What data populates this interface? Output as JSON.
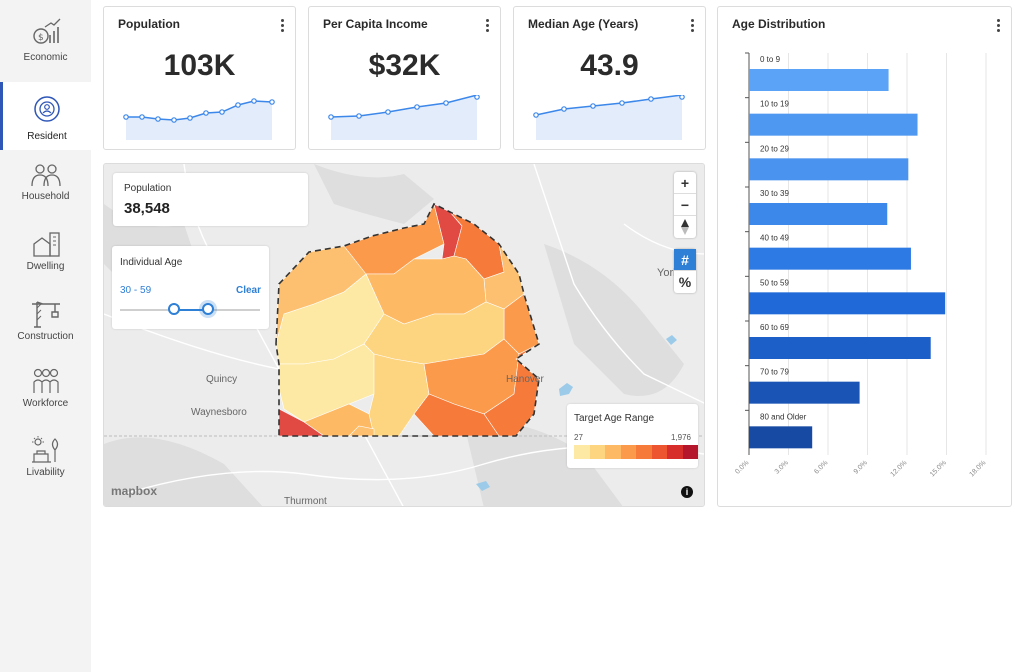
{
  "nav": [
    {
      "label": "Economic",
      "icon": "economic-icon"
    },
    {
      "label": "Resident",
      "icon": "resident-icon",
      "active": true
    },
    {
      "label": "Household",
      "icon": "household-icon"
    },
    {
      "label": "Dwelling",
      "icon": "dwelling-icon"
    },
    {
      "label": "Construction",
      "icon": "construction-icon"
    },
    {
      "label": "Workforce",
      "icon": "workforce-icon"
    },
    {
      "label": "Livability",
      "icon": "livability-icon"
    }
  ],
  "kpis": [
    {
      "title": "Population",
      "value": "103K"
    },
    {
      "title": "Per Capita Income",
      "value": "$32K"
    },
    {
      "title": "Median Age (Years)",
      "value": "43.9"
    }
  ],
  "map": {
    "population_label": "Population",
    "population_value": "38,548",
    "filter_title": "Individual Age",
    "filter_range": "30 - 59",
    "filter_clear": "Clear",
    "legend_title": "Target Age Range",
    "legend_min": "27",
    "legend_max": "1,976",
    "legend_colors": [
      "#fde9a4",
      "#fdd480",
      "#fdb964",
      "#fc9a4c",
      "#f67a3a",
      "#ec5530",
      "#d72e2b",
      "#b6162b"
    ],
    "places": [
      "York",
      "Quincy",
      "Waynesboro",
      "Hanover",
      "Thurmont"
    ],
    "attribution": "mapbox",
    "controls": {
      "zoom_in": "+",
      "zoom_out": "−",
      "count_toggle": "#",
      "percent_toggle": "%"
    }
  },
  "age_distribution": {
    "title": "Age Distribution"
  },
  "chart_data": {
    "type": "bar",
    "orientation": "horizontal",
    "title": "Age Distribution",
    "categories": [
      "0 to 9",
      "10 to 19",
      "20 to 29",
      "30 to 39",
      "40 to 49",
      "50 to 59",
      "60 to 69",
      "70 to 79",
      "80 and Older"
    ],
    "values": [
      10.6,
      12.8,
      12.1,
      10.5,
      12.3,
      14.9,
      13.8,
      8.4,
      4.8
    ],
    "ticks": [
      "0.0%",
      "3.0%",
      "6.0%",
      "9.0%",
      "12.0%",
      "15.0%",
      "18.0%"
    ],
    "xlim": [
      0,
      18
    ],
    "colors": [
      "#5ba3f6",
      "#4f98f2",
      "#4a93ee",
      "#3b87ea",
      "#2d7ae4",
      "#1f6ad8",
      "#1d5fc8",
      "#1a55b6",
      "#174aa2"
    ],
    "grid": true
  }
}
